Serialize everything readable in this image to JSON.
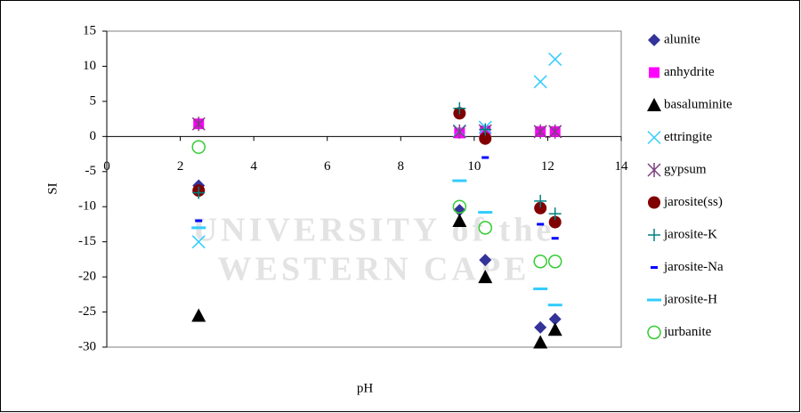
{
  "chart_data": {
    "type": "scatter",
    "x_label": "pH",
    "y_label": "SI",
    "watermark": [
      "UNIVERSITY of the",
      "WESTERN CAPE"
    ],
    "x": [
      2.5,
      9.6,
      10.3,
      11.8,
      12.2
    ],
    "xlim": [
      0,
      14
    ],
    "xticks": [
      0,
      2,
      4,
      6,
      8,
      10,
      12,
      14
    ],
    "ylim": [
      -30,
      15
    ],
    "yticks": [
      15,
      10,
      5,
      0,
      -5,
      -10,
      -15,
      -20,
      -25,
      -30
    ],
    "grid": false,
    "legend": "right",
    "series": [
      {
        "name": "alunite",
        "color": "#333399",
        "marker": "diamond",
        "values": [
          -7,
          -10.5,
          -17.6,
          -27.2,
          -26
        ]
      },
      {
        "name": "anhydrite",
        "color": "#ff00ff",
        "marker": "square",
        "values": [
          1.8,
          0.5,
          0.8,
          0.7,
          0.7
        ]
      },
      {
        "name": "basaluminite",
        "color": "#000000",
        "marker": "triangle",
        "values": [
          -25.5,
          -12,
          -20,
          -29.3,
          -27.5
        ]
      },
      {
        "name": "ettringite",
        "color": "#33ccff",
        "marker": "x",
        "values": [
          -15,
          0.8,
          1.3,
          7.8,
          11
        ]
      },
      {
        "name": "gypsum",
        "color": "#7f3f7f",
        "marker": "asterisk",
        "values": [
          1.8,
          0.7,
          0.8,
          0.7,
          0.7
        ]
      },
      {
        "name": "jarosite(ss)",
        "color": "#800000",
        "marker": "circle",
        "values": [
          -7.7,
          3.3,
          -0.3,
          -10.2,
          -12.2
        ]
      },
      {
        "name": "jarosite-K",
        "color": "#008080",
        "marker": "plus",
        "values": [
          -8,
          4,
          1,
          -9.2,
          -11
        ]
      },
      {
        "name": "jarosite-Na",
        "color": "#0000ff",
        "marker": "dash",
        "values": [
          -12,
          null,
          -3,
          -12.5,
          -14.5
        ]
      },
      {
        "name": "jarosite-H",
        "color": "#33ccff",
        "marker": "longdash",
        "values": [
          -13,
          -6.3,
          -10.8,
          -21.7,
          -24
        ]
      },
      {
        "name": "jurbanite",
        "color": "#33cc33",
        "marker": "ring",
        "values": [
          -1.5,
          -10,
          -13,
          -17.8,
          -17.8
        ]
      }
    ]
  }
}
